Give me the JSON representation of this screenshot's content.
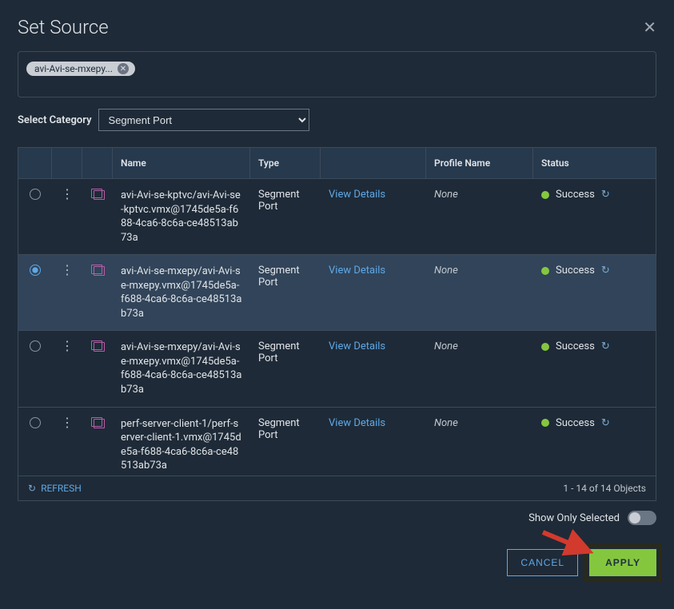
{
  "title": "Set Source",
  "filter_chip": {
    "text": "avi-Avi-se-mxepy..."
  },
  "category": {
    "label": "Select Category",
    "value": "Segment Port"
  },
  "columns": {
    "name": "Name",
    "type": "Type",
    "profile": "Profile Name",
    "status": "Status"
  },
  "view_details_label": "View Details",
  "rows": [
    {
      "selected": false,
      "name": "avi-Avi-se-kptvc/avi-Avi-se-kptvc.vmx@1745de5a-f688-4ca6-8c6a-ce48513ab73a",
      "type": "Segment Port",
      "profile": "None",
      "status": "Success"
    },
    {
      "selected": true,
      "name": "avi-Avi-se-mxepy/avi-Avi-se-mxepy.vmx@1745de5a-f688-4ca6-8c6a-ce48513ab73a",
      "type": "Segment Port",
      "profile": "None",
      "status": "Success"
    },
    {
      "selected": false,
      "name": "avi-Avi-se-mxepy/avi-Avi-se-mxepy.vmx@1745de5a-f688-4ca6-8c6a-ce48513ab73a",
      "type": "Segment Port",
      "profile": "None",
      "status": "Success"
    },
    {
      "selected": false,
      "name": "perf-server-client-1/perf-server-client-1.vmx@1745de5a-f688-4ca6-8c6a-ce48513ab73a",
      "type": "Segment Port",
      "profile": "None",
      "status": "Success"
    }
  ],
  "footer": {
    "refresh": "REFRESH",
    "count": "1 - 14 of 14 Objects"
  },
  "show_only_selected": "Show Only Selected",
  "buttons": {
    "cancel": "CANCEL",
    "apply": "APPLY"
  },
  "colors": {
    "bg": "#1e2a37",
    "header_bg": "#27394d",
    "sel_bg": "#314459",
    "border": "#3c4a5a",
    "link": "#5fa8e6",
    "success": "#84c73f",
    "icon_pink": "#b45fa8",
    "arrow": "#d23a2e"
  }
}
